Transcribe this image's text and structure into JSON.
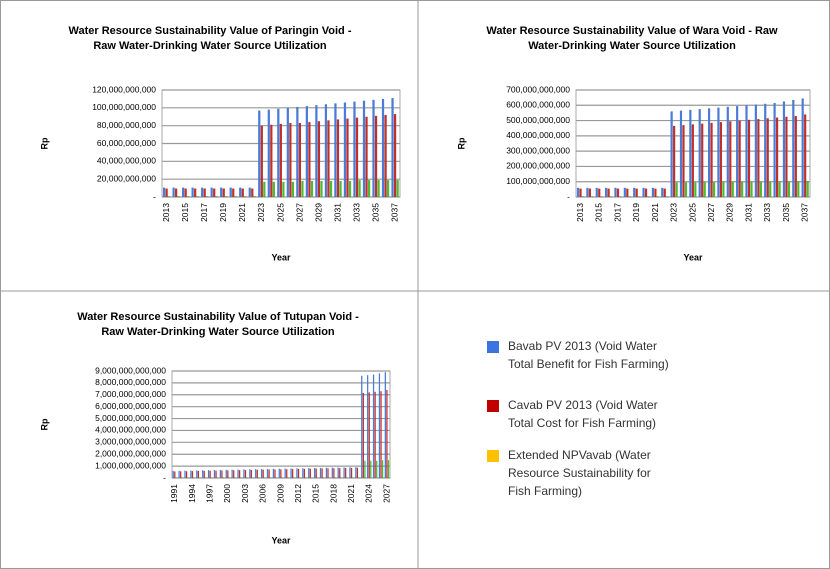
{
  "chart_data": [
    {
      "type": "bar",
      "title": [
        "Water Resource Sustainability Value of Paringin Void -",
        "Raw Water-Drinking Water Source Utilization"
      ],
      "xlabel": "Year",
      "ylabel": "Rp",
      "categories": [
        "2013",
        null,
        "2015",
        null,
        "2017",
        null,
        "2019",
        null,
        "2021",
        null,
        "2023",
        null,
        "2025",
        null,
        "2027",
        null,
        "2029",
        null,
        "2031",
        null,
        "2033",
        null,
        "2035",
        null,
        "2037"
      ],
      "series": [
        {
          "color": "#4a7bd6",
          "values": [
            10500000000.0,
            10500000000.0,
            10500000000.0,
            10500000000.0,
            10500000000.0,
            10500000000.0,
            10500000000.0,
            10500000000.0,
            10500000000.0,
            10500000000.0,
            97000000000.0,
            98000000000.0,
            99000000000.0,
            100000000000.0,
            101000000000.0,
            102000000000.0,
            103000000000.0,
            104000000000.0,
            105000000000.0,
            106000000000.0,
            107000000000.0,
            108000000000.0,
            109000000000.0,
            110000000000.0,
            111000000000.0
          ]
        },
        {
          "color": "#c0302b",
          "values": [
            9500000000.0,
            9500000000.0,
            9500000000.0,
            9500000000.0,
            9500000000.0,
            9500000000.0,
            9500000000.0,
            9500000000.0,
            9500000000.0,
            9500000000.0,
            80000000000.0,
            81000000000.0,
            82000000000.0,
            83000000000.0,
            83000000000.0,
            84000000000.0,
            85000000000.0,
            86000000000.0,
            87000000000.0,
            88000000000.0,
            89000000000.0,
            90000000000.0,
            91000000000.0,
            92000000000.0,
            93000000000.0
          ]
        },
        {
          "color": "#4cbb33",
          "values": [
            1000000000.0,
            1000000000.0,
            1000000000.0,
            1000000000.0,
            1000000000.0,
            1000000000.0,
            1000000000.0,
            1000000000.0,
            1000000000.0,
            1000000000.0,
            17000000000.0,
            17000000000.0,
            17000000000.0,
            17000000000.0,
            18000000000.0,
            18000000000.0,
            18000000000.0,
            18000000000.0,
            18000000000.0,
            18000000000.0,
            19000000000.0,
            19000000000.0,
            19000000000.0,
            19000000000.0,
            19000000000.0
          ]
        }
      ],
      "ylim": [
        0,
        120000000000
      ],
      "yticks": [
        {
          "value": 0,
          "label": "-"
        },
        {
          "value": 20000000000,
          "label": "20,000,000,000"
        },
        {
          "value": 40000000000,
          "label": "40,000,000,000"
        },
        {
          "value": 60000000000,
          "label": "60,000,000,000"
        },
        {
          "value": 80000000000,
          "label": "80,000,000,000"
        },
        {
          "value": 100000000000,
          "label": "100,000,000,000"
        },
        {
          "value": 120000000000,
          "label": "120,000,000,000"
        }
      ],
      "grid": true
    },
    {
      "type": "bar",
      "title": [
        "Water Resource Sustainability Value of Wara Void - Raw",
        "Water-Drinking Water Source Utilization"
      ],
      "xlabel": "Year",
      "ylabel": "Rp",
      "categories": [
        "2013",
        null,
        "2015",
        null,
        "2017",
        null,
        "2019",
        null,
        "2021",
        null,
        "2023",
        null,
        "2025",
        null,
        "2027",
        null,
        "2029",
        null,
        "2031",
        null,
        "2033",
        null,
        "2035",
        null,
        "2037"
      ],
      "series": [
        {
          "color": "#4a7bd6",
          "values": [
            60000000000.0,
            60000000000.0,
            60000000000.0,
            60000000000.0,
            60000000000.0,
            60000000000.0,
            60000000000.0,
            60000000000.0,
            60000000000.0,
            60000000000.0,
            560000000000.0,
            565000000000.0,
            570000000000.0,
            575000000000.0,
            580000000000.0,
            585000000000.0,
            590000000000.0,
            595000000000.0,
            600000000000.0,
            605000000000.0,
            610000000000.0,
            615000000000.0,
            625000000000.0,
            635000000000.0,
            645000000000.0
          ]
        },
        {
          "color": "#c0302b",
          "values": [
            55000000000.0,
            55000000000.0,
            55000000000.0,
            55000000000.0,
            55000000000.0,
            55000000000.0,
            55000000000.0,
            55000000000.0,
            55000000000.0,
            55000000000.0,
            465000000000.0,
            470000000000.0,
            475000000000.0,
            480000000000.0,
            485000000000.0,
            490000000000.0,
            495000000000.0,
            500000000000.0,
            505000000000.0,
            510000000000.0,
            515000000000.0,
            520000000000.0,
            525000000000.0,
            530000000000.0,
            540000000000.0
          ]
        },
        {
          "color": "#4cbb33",
          "values": [
            5000000000.0,
            5000000000.0,
            5000000000.0,
            5000000000.0,
            5000000000.0,
            5000000000.0,
            5000000000.0,
            5000000000.0,
            5000000000.0,
            5000000000.0,
            95000000000.0,
            96000000000.0,
            97000000000.0,
            98000000000.0,
            98000000000.0,
            99000000000.0,
            100000000000.0,
            100000000000.0,
            101000000000.0,
            102000000000.0,
            102000000000.0,
            103000000000.0,
            103000000000.0,
            104000000000.0,
            105000000000.0
          ]
        }
      ],
      "ylim": [
        0,
        700000000000
      ],
      "yticks": [
        {
          "value": 0,
          "label": "-"
        },
        {
          "value": 100000000000,
          "label": "100,000,000,000"
        },
        {
          "value": 200000000000,
          "label": "200,000,000,000"
        },
        {
          "value": 300000000000,
          "label": "300,000,000,000"
        },
        {
          "value": 400000000000,
          "label": "400,000,000,000"
        },
        {
          "value": 500000000000,
          "label": "500,000,000,000"
        },
        {
          "value": 600000000000,
          "label": "600,000,000,000"
        },
        {
          "value": 700000000000,
          "label": "700,000,000,000"
        }
      ],
      "grid": true
    },
    {
      "type": "bar",
      "title": [
        "Water Resource Sustainability Value of Tutupan Void -",
        "Raw Water-Drinking Water Source Utilization"
      ],
      "xlabel": "Year",
      "ylabel": "Rp",
      "categories": [
        "1991",
        null,
        null,
        "1994",
        null,
        null,
        "1997",
        null,
        null,
        "2000",
        null,
        null,
        "2003",
        null,
        null,
        "2006",
        null,
        null,
        "2009",
        null,
        null,
        "2012",
        null,
        null,
        "2015",
        null,
        null,
        "2018",
        null,
        null,
        "2021",
        null,
        null,
        "2024",
        null,
        null,
        "2027"
      ],
      "series": [
        {
          "color": "#4a7bd6",
          "values": [
            600000000000.0,
            610000000000.0,
            620000000000.0,
            630000000000.0,
            640000000000.0,
            650000000000.0,
            660000000000.0,
            670000000000.0,
            680000000000.0,
            690000000000.0,
            700000000000.0,
            710000000000.0,
            720000000000.0,
            730000000000.0,
            740000000000.0,
            750000000000.0,
            760000000000.0,
            770000000000.0,
            780000000000.0,
            790000000000.0,
            800000000000.0,
            810000000000.0,
            820000000000.0,
            830000000000.0,
            840000000000.0,
            850000000000.0,
            860000000000.0,
            870000000000.0,
            880000000000.0,
            890000000000.0,
            900000000000.0,
            910000000000.0,
            8600000000000.0,
            8650000000000.0,
            8700000000000.0,
            8800000000000.0,
            8900000000000.0
          ]
        },
        {
          "color": "#c0302b",
          "values": [
            550000000000.0,
            560000000000.0,
            570000000000.0,
            580000000000.0,
            590000000000.0,
            600000000000.0,
            610000000000.0,
            620000000000.0,
            630000000000.0,
            640000000000.0,
            650000000000.0,
            660000000000.0,
            670000000000.0,
            680000000000.0,
            690000000000.0,
            700000000000.0,
            710000000000.0,
            720000000000.0,
            730000000000.0,
            740000000000.0,
            750000000000.0,
            760000000000.0,
            770000000000.0,
            780000000000.0,
            790000000000.0,
            800000000000.0,
            810000000000.0,
            820000000000.0,
            830000000000.0,
            840000000000.0,
            850000000000.0,
            860000000000.0,
            7150000000000.0,
            7200000000000.0,
            7250000000000.0,
            7300000000000.0,
            7400000000000.0
          ]
        },
        {
          "color": "#4cbb33",
          "values": [
            50000000000.0,
            50000000000.0,
            50000000000.0,
            50000000000.0,
            50000000000.0,
            50000000000.0,
            50000000000.0,
            50000000000.0,
            50000000000.0,
            50000000000.0,
            50000000000.0,
            50000000000.0,
            50000000000.0,
            50000000000.0,
            50000000000.0,
            50000000000.0,
            50000000000.0,
            50000000000.0,
            50000000000.0,
            50000000000.0,
            50000000000.0,
            50000000000.0,
            50000000000.0,
            50000000000.0,
            50000000000.0,
            50000000000.0,
            50000000000.0,
            50000000000.0,
            50000000000.0,
            50000000000.0,
            50000000000.0,
            50000000000.0,
            1450000000000.0,
            1450000000000.0,
            1450000000000.0,
            1500000000000.0,
            1500000000000.0
          ]
        }
      ],
      "ylim": [
        0,
        9000000000000
      ],
      "yticks": [
        {
          "value": 0,
          "label": "-"
        },
        {
          "value": 1000000000000,
          "label": "1,000,000,000,000"
        },
        {
          "value": 2000000000000,
          "label": "2,000,000,000,000"
        },
        {
          "value": 3000000000000,
          "label": "3,000,000,000,000"
        },
        {
          "value": 4000000000000,
          "label": "4,000,000,000,000"
        },
        {
          "value": 5000000000000,
          "label": "5,000,000,000,000"
        },
        {
          "value": 6000000000000,
          "label": "6,000,000,000,000"
        },
        {
          "value": 7000000000000,
          "label": "7,000,000,000,000"
        },
        {
          "value": 8000000000000,
          "label": "8,000,000,000,000"
        },
        {
          "value": 9000000000000,
          "label": "9,000,000,000,000"
        }
      ],
      "grid": true
    }
  ],
  "legend": [
    {
      "color": "#3b73e0",
      "lines": [
        "Bavab PV 2013 (Void Water",
        "Total Benefit for Fish Farming)"
      ]
    },
    {
      "color": "#c00000",
      "lines": [
        "Cavab PV 2013 (Void Water",
        "Total Cost for Fish Farming)"
      ]
    },
    {
      "color": "#ffc000",
      "lines": [
        "Extended NPVavab (Water",
        "Resource Sustainability for",
        "Fish Farming)"
      ]
    }
  ]
}
